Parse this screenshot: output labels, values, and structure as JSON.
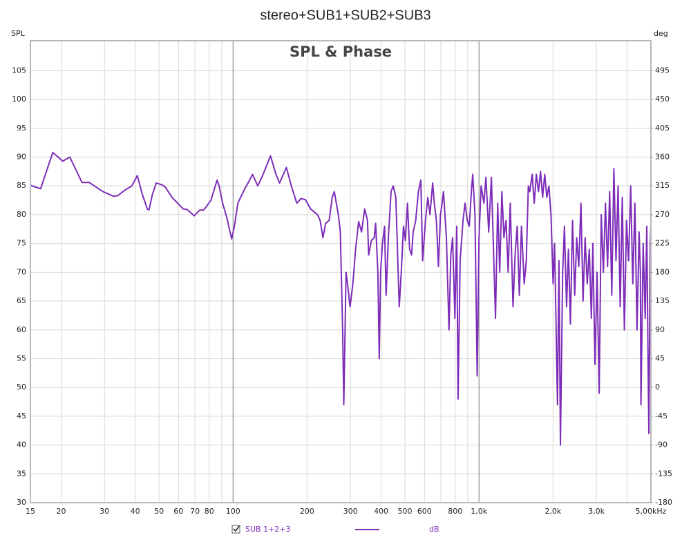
{
  "chart_data": {
    "type": "line",
    "title": "stereo+SUB1+SUB2+SUB3",
    "subtitle": "SPL & Phase",
    "ylabel": "SPL",
    "y2label": "deg",
    "xscale": "log",
    "grid": true,
    "xlim": [
      15,
      5000
    ],
    "ylim": [
      30,
      110.2
    ],
    "y2lim": [
      -180,
      541.8
    ],
    "xticks": [
      15,
      20,
      30,
      40,
      50,
      60,
      70,
      80,
      100,
      200,
      300,
      400,
      500,
      600,
      800,
      {
        "value": 1000,
        "label": "1,0k"
      },
      {
        "value": 2000,
        "label": "2,0k"
      },
      {
        "value": 3000,
        "label": "3,0k"
      },
      {
        "value": 5000,
        "label": "5,00kHz"
      }
    ],
    "xminor_ticks": [
      90,
      700,
      900,
      4000
    ],
    "yticks": [
      30,
      35,
      40,
      45,
      50,
      55,
      60,
      65,
      70,
      75,
      80,
      85,
      90,
      95,
      100,
      105
    ],
    "y2ticks": [
      -180,
      -135,
      -90,
      -45,
      0,
      45,
      90,
      135,
      180,
      225,
      270,
      315,
      360,
      405,
      450,
      495
    ],
    "legend": {
      "checked": true,
      "unit": "dB"
    },
    "x": [
      15,
      16.5,
      18.5,
      20.3,
      21.7,
      24.3,
      26,
      29.6,
      32.6,
      34,
      36.4,
      38.8,
      40.8,
      42.8,
      44.8,
      45.5,
      47,
      48.7,
      51.3,
      53,
      56.5,
      59.5,
      62.7,
      65,
      69.5,
      73.2,
      76,
      81.3,
      86.1,
      87.8,
      90.7,
      94.3,
      98.7,
      101.3,
      104.6,
      111.6,
      116.8,
      120,
      126,
      131,
      142,
      149.5,
      154.5,
      164.8,
      172.5,
      181.6,
      188.8,
      197,
      206.7,
      220.5,
      226,
      232,
      238,
      246,
      253,
      258,
      268,
      273,
      279,
      282,
      288,
      292,
      299,
      307,
      315,
      324,
      333,
      343,
      352,
      356,
      365,
      375,
      380,
      388,
      393,
      398,
      405,
      413,
      419,
      428,
      439,
      448,
      459,
      474,
      483,
      493,
      502,
      512,
      522,
      532,
      540,
      553,
      567,
      580,
      590,
      606,
      619,
      632,
      648,
      658,
      671,
      684,
      697,
      708,
      717,
      737,
      755,
      768,
      781,
      798,
      812,
      822,
      838,
      861,
      878,
      896,
      913,
      931,
      943,
      963,
      983,
      1000,
      1020,
      1047,
      1067,
      1095,
      1123,
      1145,
      1167,
      1191,
      1214,
      1239,
      1263,
      1288,
      1314,
      1340,
      1375,
      1402,
      1430,
      1459,
      1488,
      1527,
      1557,
      1587,
      1608,
      1645,
      1677,
      1711,
      1745,
      1779,
      1814,
      1850,
      1887,
      1924,
      1962,
      2001,
      2029,
      2085,
      2114,
      2143,
      2189,
      2225,
      2270,
      2310,
      2353,
      2400,
      2450,
      2496,
      2545,
      2596,
      2648,
      2700,
      2754,
      2808,
      2864,
      2903,
      2961,
      3020,
      3080,
      3141,
      3204,
      3267,
      3332,
      3398,
      3466,
      3535,
      3605,
      3677,
      3750,
      3824,
      3900,
      3978,
      4057,
      4137,
      4220,
      4303,
      4389,
      4476,
      4530,
      4554,
      4650,
      4740,
      4810,
      4872,
      4905,
      4969,
      5000
    ],
    "series": [
      {
        "name": "SUB 1+2+3",
        "color": "#7d2cb8",
        "values": [
          85.1,
          84.5,
          90.8,
          89.3,
          90,
          85.6,
          85.6,
          84,
          83.2,
          83.3,
          84.3,
          85,
          86.8,
          83.5,
          81,
          80.8,
          83.5,
          85.5,
          85.2,
          84.8,
          83,
          82,
          81,
          80.9,
          79.8,
          80.8,
          80.8,
          82.5,
          86,
          85,
          82,
          79.5,
          75.8,
          78,
          82,
          84.5,
          86,
          87,
          85,
          86.5,
          90.2,
          87,
          85.5,
          88.2,
          85,
          82,
          82.8,
          82.6,
          81,
          80,
          79,
          76,
          78.5,
          79,
          83,
          84,
          80,
          77,
          60,
          47,
          70,
          68,
          64,
          68,
          74,
          78.8,
          77,
          81,
          79,
          73,
          75.5,
          76,
          78.5,
          70,
          55,
          70,
          75,
          78,
          66,
          76,
          84,
          85,
          83,
          64,
          70,
          78,
          75.5,
          82,
          74,
          73,
          77,
          79,
          84,
          86,
          72,
          79,
          83,
          80,
          85.5,
          82,
          79,
          71,
          80,
          82,
          84,
          76,
          60,
          73,
          76,
          62,
          78,
          48,
          72,
          79,
          82,
          79,
          78,
          84,
          87,
          80,
          52,
          76,
          85,
          82,
          86.5,
          77,
          86.5,
          74,
          62,
          82,
          70,
          84,
          76,
          79,
          70,
          82,
          64,
          73,
          78,
          66,
          78,
          68,
          72,
          85,
          84,
          87,
          82,
          87,
          84,
          87.5,
          83,
          87,
          83,
          85,
          80,
          68,
          75,
          47,
          72,
          40,
          70,
          78,
          64,
          74,
          61,
          79,
          66,
          76,
          71,
          82,
          65,
          76,
          68,
          74,
          62,
          75,
          54,
          70,
          49,
          80,
          70,
          82,
          71,
          84,
          66,
          88,
          72,
          85,
          64,
          83,
          60,
          79,
          72,
          85,
          68,
          82,
          60,
          77,
          70,
          47,
          75,
          62,
          78,
          53,
          42,
          75,
          78
        ]
      }
    ]
  }
}
